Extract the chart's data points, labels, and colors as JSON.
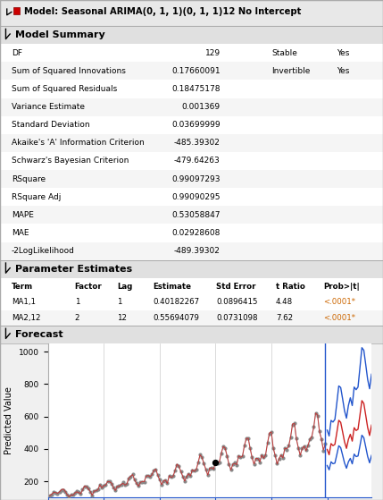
{
  "title": "Model: Seasonal ARIMA(0, 1, 1)(0, 1, 1)12 No Intercept",
  "model_summary_title": "Model Summary",
  "summary_rows": [
    [
      "DF",
      "129",
      "Stable",
      "Yes"
    ],
    [
      "Sum of Squared Innovations",
      "0.17660091",
      "Invertible",
      "Yes"
    ],
    [
      "Sum of Squared Residuals",
      "0.18475178",
      "",
      ""
    ],
    [
      "Variance Estimate",
      "0.001369",
      "",
      ""
    ],
    [
      "Standard Deviation",
      "0.03699999",
      "",
      ""
    ],
    [
      "Akaike's 'A' Information Criterion",
      "-485.39302",
      "",
      ""
    ],
    [
      "Schwarz's Bayesian Criterion",
      "-479.64263",
      "",
      ""
    ],
    [
      "RSquare",
      "0.99097293",
      "",
      ""
    ],
    [
      "RSquare Adj",
      "0.99090295",
      "",
      ""
    ],
    [
      "MAPE",
      "0.53058847",
      "",
      ""
    ],
    [
      "MAE",
      "0.02928608",
      "",
      ""
    ],
    [
      "-2LogLikelihood",
      "-489.39302",
      "",
      ""
    ]
  ],
  "param_title": "Parameter Estimates",
  "param_headers": [
    "Term",
    "Factor",
    "Lag",
    "Estimate",
    "Std Error",
    "t Ratio",
    "Prob>|t|"
  ],
  "param_rows": [
    [
      "MA1,1",
      "1",
      "1",
      "0.40182267",
      "0.0896415",
      "4.48",
      "<.0001*"
    ],
    [
      "MA2,12",
      "2",
      "12",
      "0.55694079",
      "0.0731098",
      "7.62",
      "<.0001*"
    ]
  ],
  "forecast_title": "Forecast",
  "bg_color": "#f0f0f0",
  "section_bg": "#e0e0e0",
  "orange_color": "#cc6600"
}
